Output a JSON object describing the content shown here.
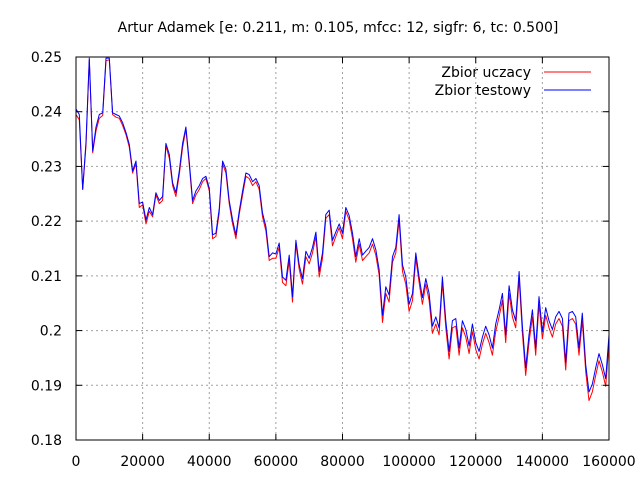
{
  "chart_data": {
    "type": "line",
    "title": "Artur Adamek [e: 0.211, m: 0.105, mfcc: 12, sigfr: 6, tc: 0.500]",
    "xlabel": "",
    "ylabel": "",
    "xlim": [
      0,
      160000
    ],
    "ylim": [
      0.18,
      0.25
    ],
    "xticks": [
      0,
      20000,
      40000,
      60000,
      80000,
      100000,
      120000,
      140000,
      160000
    ],
    "yticks": [
      0.18,
      0.19,
      0.2,
      0.21,
      0.22,
      0.23,
      0.24,
      0.25
    ],
    "grid": true,
    "legend_position": "top-right",
    "series": [
      {
        "name": "Zbior uczacy",
        "color": "#ff0000",
        "x": [
          0,
          1000,
          2000,
          3000,
          4000,
          5000,
          6000,
          7000,
          8000,
          9000,
          10000,
          11000,
          12000,
          13000,
          14000,
          15000,
          16000,
          17000,
          18000,
          19000,
          20000,
          21000,
          22000,
          23000,
          24000,
          25000,
          26000,
          27000,
          28000,
          29000,
          30000,
          31000,
          32000,
          33000,
          34000,
          35000,
          36000,
          37000,
          38000,
          39000,
          40000,
          41000,
          42000,
          43000,
          44000,
          45000,
          46000,
          47000,
          48000,
          49000,
          50000,
          51000,
          52000,
          53000,
          54000,
          55000,
          56000,
          57000,
          58000,
          59000,
          60000,
          61000,
          62000,
          63000,
          64000,
          65000,
          66000,
          67000,
          68000,
          69000,
          70000,
          71000,
          72000,
          73000,
          74000,
          75000,
          76000,
          77000,
          78000,
          79000,
          80000,
          81000,
          82000,
          83000,
          84000,
          85000,
          86000,
          87000,
          88000,
          89000,
          90000,
          91000,
          92000,
          93000,
          94000,
          95000,
          96000,
          97000,
          98000,
          99000,
          100000,
          101000,
          102000,
          103000,
          104000,
          105000,
          106000,
          107000,
          108000,
          109000,
          110000,
          111000,
          112000,
          113000,
          114000,
          115000,
          116000,
          117000,
          118000,
          119000,
          120000,
          121000,
          122000,
          123000,
          124000,
          125000,
          126000,
          127000,
          128000,
          129000,
          130000,
          131000,
          132000,
          133000,
          134000,
          135000,
          136000,
          137000,
          138000,
          139000,
          140000,
          141000,
          142000,
          143000,
          144000,
          145000,
          146000,
          147000,
          148000,
          149000,
          150000,
          151000,
          152000,
          153000,
          154000,
          155000,
          156000,
          157000,
          158000,
          159000,
          160000
        ],
        "y": [
          0.2395,
          0.2385,
          0.2258,
          0.2338,
          0.2495,
          0.2325,
          0.2365,
          0.2388,
          0.2393,
          0.2493,
          0.2495,
          0.2395,
          0.239,
          0.2388,
          0.2375,
          0.2358,
          0.2335,
          0.2288,
          0.2305,
          0.2225,
          0.223,
          0.2195,
          0.2218,
          0.2208,
          0.2248,
          0.2232,
          0.2238,
          0.2338,
          0.2315,
          0.2265,
          0.2245,
          0.2285,
          0.2335,
          0.2368,
          0.2302,
          0.2232,
          0.2248,
          0.2258,
          0.2272,
          0.2278,
          0.2255,
          0.2168,
          0.2172,
          0.2215,
          0.2305,
          0.2288,
          0.2232,
          0.2195,
          0.2168,
          0.2212,
          0.2248,
          0.2282,
          0.2278,
          0.2265,
          0.2272,
          0.2258,
          0.2208,
          0.2182,
          0.2128,
          0.2132,
          0.2132,
          0.2152,
          0.2088,
          0.2082,
          0.2128,
          0.2052,
          0.2158,
          0.2112,
          0.2085,
          0.2135,
          0.2122,
          0.2142,
          0.2172,
          0.2098,
          0.2132,
          0.2205,
          0.2212,
          0.2155,
          0.2172,
          0.2188,
          0.2168,
          0.2218,
          0.2202,
          0.2168,
          0.2125,
          0.2158,
          0.2128,
          0.2135,
          0.2142,
          0.2158,
          0.2138,
          0.2102,
          0.2015,
          0.2068,
          0.2052,
          0.2125,
          0.2142,
          0.2202,
          0.2108,
          0.2085,
          0.2035,
          0.2055,
          0.2132,
          0.2088,
          0.2048,
          0.2085,
          0.2055,
          0.1995,
          0.2012,
          0.1992,
          0.2088,
          0.2005,
          0.1948,
          0.2005,
          0.2008,
          0.1955,
          0.2005,
          0.1988,
          0.1958,
          0.1998,
          0.1965,
          0.1948,
          0.1975,
          0.1995,
          0.1978,
          0.1955,
          0.1998,
          0.2025,
          0.2055,
          0.1978,
          0.2068,
          0.2025,
          0.2005,
          0.2095,
          0.1995,
          0.1918,
          0.1978,
          0.2025,
          0.1955,
          0.2048,
          0.1985,
          0.2028,
          0.2005,
          0.1988,
          0.2012,
          0.2022,
          0.2008,
          0.1928,
          0.2018,
          0.2022,
          0.2012,
          0.1955,
          0.2018,
          0.1925,
          0.1872,
          0.1888,
          0.1918,
          0.1945,
          0.1925,
          0.1898,
          0.1978
        ]
      },
      {
        "name": "Zbior testowy",
        "color": "#0000ff",
        "x": [
          0,
          1000,
          2000,
          3000,
          4000,
          5000,
          6000,
          7000,
          8000,
          9000,
          10000,
          11000,
          12000,
          13000,
          14000,
          15000,
          16000,
          17000,
          18000,
          19000,
          20000,
          21000,
          22000,
          23000,
          24000,
          25000,
          26000,
          27000,
          28000,
          29000,
          30000,
          31000,
          32000,
          33000,
          34000,
          35000,
          36000,
          37000,
          38000,
          39000,
          40000,
          41000,
          42000,
          43000,
          44000,
          45000,
          46000,
          47000,
          48000,
          49000,
          50000,
          51000,
          52000,
          53000,
          54000,
          55000,
          56000,
          57000,
          58000,
          59000,
          60000,
          61000,
          62000,
          63000,
          64000,
          65000,
          66000,
          67000,
          68000,
          69000,
          70000,
          71000,
          72000,
          73000,
          74000,
          75000,
          76000,
          77000,
          78000,
          79000,
          80000,
          81000,
          82000,
          83000,
          84000,
          85000,
          86000,
          87000,
          88000,
          89000,
          90000,
          91000,
          92000,
          93000,
          94000,
          95000,
          96000,
          97000,
          98000,
          99000,
          100000,
          101000,
          102000,
          103000,
          104000,
          105000,
          106000,
          107000,
          108000,
          109000,
          110000,
          111000,
          112000,
          113000,
          114000,
          115000,
          116000,
          117000,
          118000,
          119000,
          120000,
          121000,
          122000,
          123000,
          124000,
          125000,
          126000,
          127000,
          128000,
          129000,
          130000,
          131000,
          132000,
          133000,
          134000,
          135000,
          136000,
          137000,
          138000,
          139000,
          140000,
          141000,
          142000,
          143000,
          144000,
          145000,
          146000,
          147000,
          148000,
          149000,
          150000,
          151000,
          152000,
          153000,
          154000,
          155000,
          156000,
          157000,
          158000,
          159000,
          160000
        ],
        "y": [
          0.2405,
          0.2395,
          0.2258,
          0.2345,
          0.2498,
          0.2328,
          0.2372,
          0.2395,
          0.2398,
          0.2498,
          0.2498,
          0.2398,
          0.2395,
          0.2392,
          0.238,
          0.2362,
          0.234,
          0.2292,
          0.231,
          0.2232,
          0.2235,
          0.2202,
          0.2225,
          0.2212,
          0.2252,
          0.2238,
          0.2245,
          0.2342,
          0.2322,
          0.227,
          0.2252,
          0.2292,
          0.2342,
          0.2372,
          0.2308,
          0.2238,
          0.2255,
          0.2265,
          0.2278,
          0.2282,
          0.226,
          0.2175,
          0.2178,
          0.2222,
          0.231,
          0.2295,
          0.2238,
          0.2202,
          0.2175,
          0.2218,
          0.2255,
          0.2288,
          0.2285,
          0.2272,
          0.2278,
          0.2265,
          0.2215,
          0.219,
          0.2135,
          0.2142,
          0.214,
          0.216,
          0.2098,
          0.2092,
          0.2138,
          0.2062,
          0.2165,
          0.212,
          0.2095,
          0.2145,
          0.2132,
          0.2152,
          0.218,
          0.2108,
          0.2142,
          0.2212,
          0.222,
          0.2165,
          0.218,
          0.2195,
          0.2178,
          0.2225,
          0.221,
          0.2178,
          0.2135,
          0.2168,
          0.2138,
          0.2145,
          0.2152,
          0.2168,
          0.2148,
          0.2112,
          0.2028,
          0.208,
          0.2065,
          0.2135,
          0.2152,
          0.2212,
          0.212,
          0.2098,
          0.2048,
          0.2068,
          0.2142,
          0.2098,
          0.206,
          0.2095,
          0.2068,
          0.2008,
          0.2025,
          0.2005,
          0.2098,
          0.2018,
          0.1962,
          0.2018,
          0.2022,
          0.1968,
          0.2018,
          0.2002,
          0.1972,
          0.2012,
          0.1978,
          0.1962,
          0.1988,
          0.2008,
          0.1992,
          0.1968,
          0.2012,
          0.2038,
          0.2068,
          0.1992,
          0.2082,
          0.2038,
          0.2018,
          0.2108,
          0.2008,
          0.1932,
          0.1992,
          0.2038,
          0.1968,
          0.2062,
          0.1998,
          0.2042,
          0.2018,
          0.2002,
          0.2025,
          0.2035,
          0.2022,
          0.1942,
          0.2032,
          0.2035,
          0.2025,
          0.1968,
          0.2032,
          0.1938,
          0.1888,
          0.1902,
          0.1932,
          0.1958,
          0.1938,
          0.1912,
          0.1992
        ]
      }
    ]
  }
}
